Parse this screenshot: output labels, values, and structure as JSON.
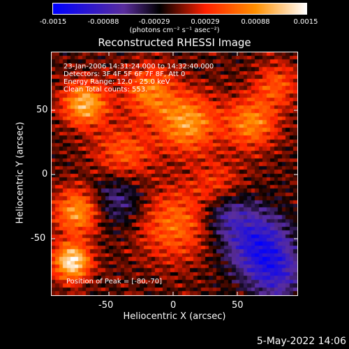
{
  "colorbar": {
    "ticks": [
      "-0.0015",
      "-0.00088",
      "-0.00029",
      "0.00029",
      "0.00088",
      "0.0015"
    ],
    "unit_label": "(photons cm⁻² s⁻¹ asec⁻²)"
  },
  "chart_data": {
    "type": "heatmap",
    "title": "Reconstructed RHESSI Image",
    "xlabel": "Heliocentric X (arcsec)",
    "ylabel": "Heliocentric Y (arcsec)",
    "xlim": [
      -96,
      96
    ],
    "ylim": [
      -96,
      96
    ],
    "x_ticks": [
      -50,
      0,
      50
    ],
    "y_ticks": [
      50,
      0,
      -50
    ],
    "color_range": [
      -0.0015,
      0.0015
    ],
    "colormap": [
      "#0000ff",
      "#5a2d9c",
      "#000000",
      "#ff2000",
      "#ff9000",
      "#ffffff"
    ],
    "annotations": [
      "23-Jan-2006 14:31:24.000 to 14:32:40.000",
      "Detectors: 3F 4F 5F 6F 7F 8F, Att 0",
      "Energy Range: 12.0 - 25.0 keV",
      "Clean      Total counts: 553."
    ],
    "peak_label": "Position of Peak = [-80,-70]",
    "peak_position": [
      -80,
      -70
    ]
  },
  "footer": {
    "date": "5-May-2022 14:06"
  }
}
